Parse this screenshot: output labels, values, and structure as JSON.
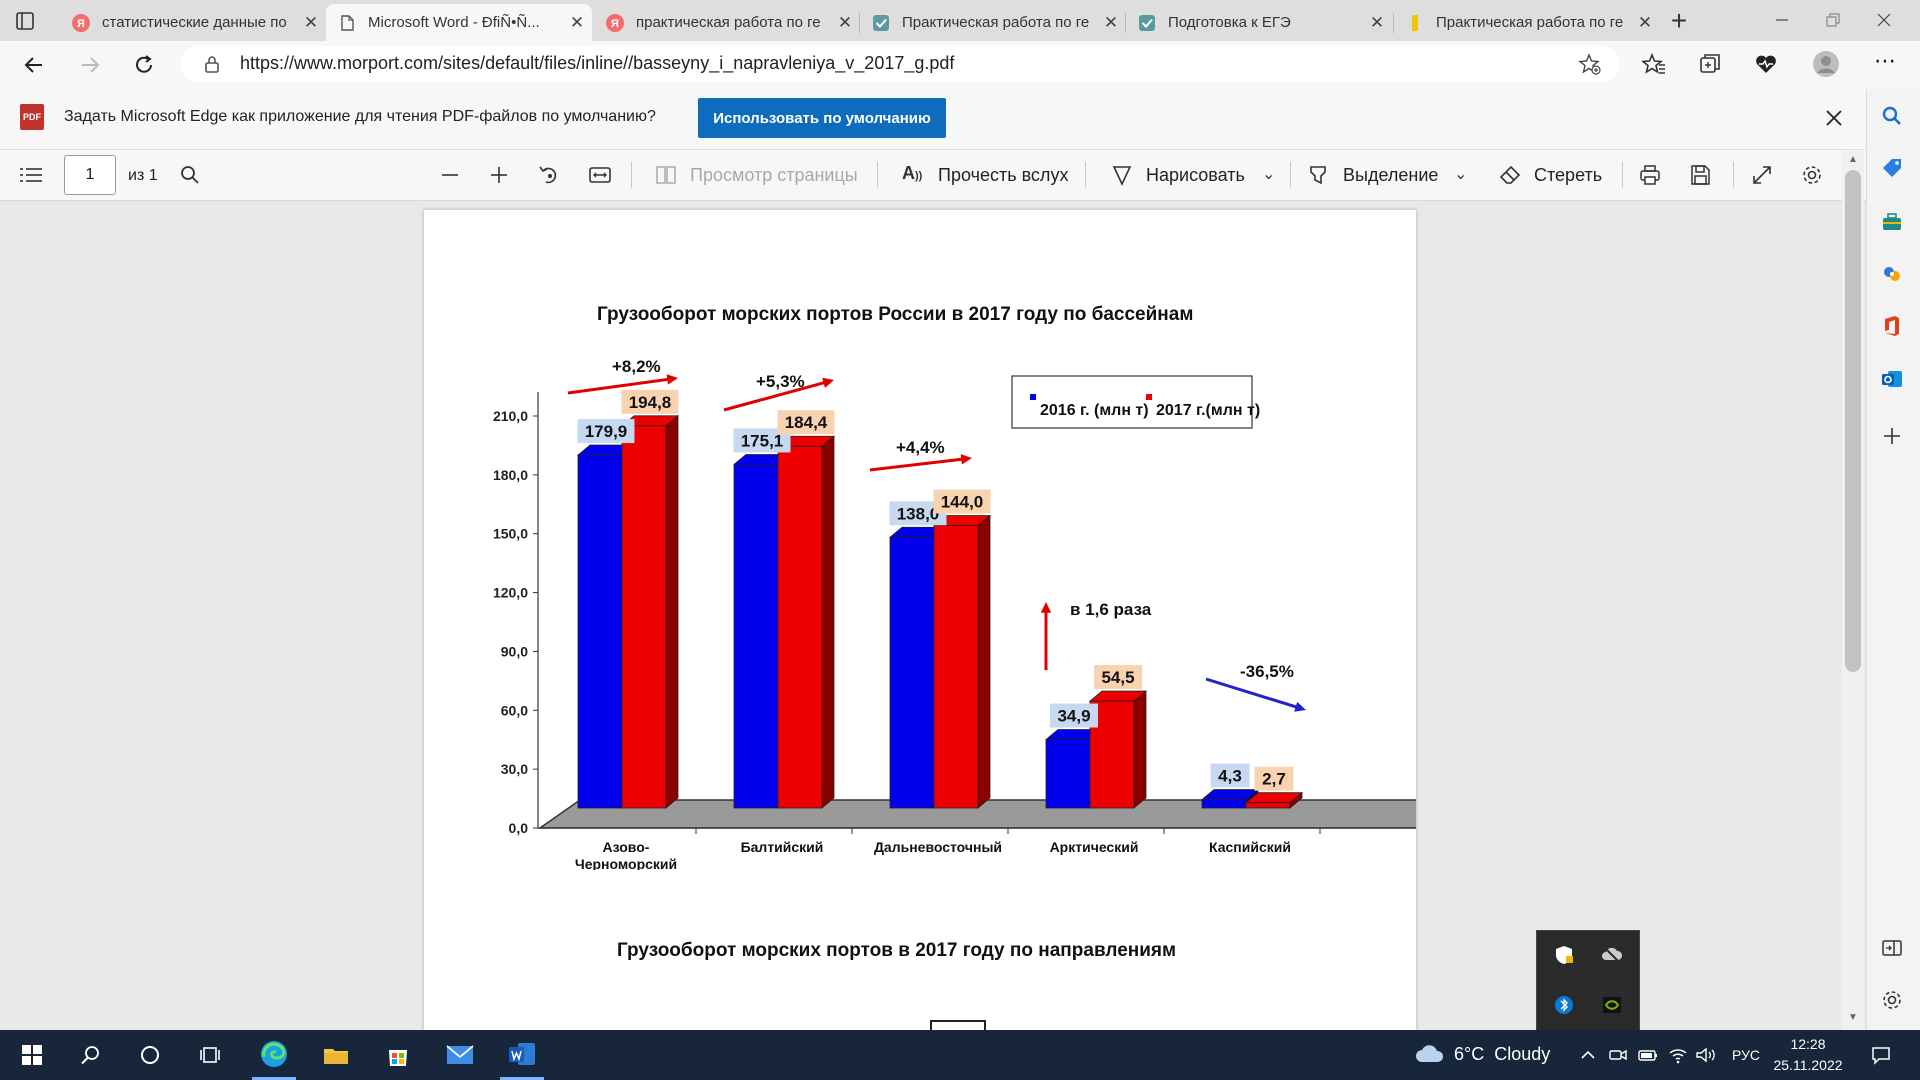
{
  "browser": {
    "tabs": [
      {
        "title": "статистические данные по",
        "icon": "yandex-icon",
        "color": "#f26d6d",
        "active": false
      },
      {
        "title": "Microsoft Word - ÐfiÑ•Ñ...",
        "icon": "document-icon",
        "color": "#555555",
        "active": true
      },
      {
        "title": "практическая работа по ге",
        "icon": "yandex-icon",
        "color": "#f26d6d",
        "active": false
      },
      {
        "title": "Практическая работа по ге",
        "icon": "check-icon",
        "color": "#5b9aa0",
        "active": false
      },
      {
        "title": "Подготовка к ЕГЭ",
        "icon": "check-icon",
        "color": "#5b9aa0",
        "active": false
      },
      {
        "title": "Практическая работа по ге",
        "icon": "bookmark-icon",
        "color": "#f2c500",
        "active": false
      }
    ],
    "new_tab": "+",
    "url": "https://www.morport.com/sites/default/files/inline//basseyny_i_napravleniya_v_2017_g.pdf"
  },
  "infobar": {
    "text": "Задать Microsoft Edge как приложение для чтения PDF-файлов по умолчанию?",
    "button": "Использовать по умолчанию",
    "pdf_badge": "PDF"
  },
  "pdf_toolbar": {
    "page_number": "1",
    "page_of": "из 1",
    "page_view": "Просмотр страницы",
    "read_aloud": "Прочесть вслух",
    "draw": "Нарисовать",
    "highlight": "Выделение",
    "erase": "Стереть"
  },
  "chart_data": {
    "type": "bar",
    "title": "Грузооборот морских портов России в 2017 году по бассейнам",
    "categories": [
      "Азово-Черноморский",
      "Балтийский",
      "Дальневосточный",
      "Арктический",
      "Каспийский"
    ],
    "category_lines": [
      [
        "Азово-",
        "Черноморский"
      ],
      [
        "Балтийский"
      ],
      [
        "Дальневосточный"
      ],
      [
        "Арктический"
      ],
      [
        "Каспийский"
      ]
    ],
    "series": [
      {
        "name": "2016 г. (млн т)",
        "values": [
          179.9,
          175.1,
          138.0,
          34.9,
          4.3
        ],
        "labels": [
          "179,9",
          "175,1",
          "138,0",
          "34,9",
          "4,3"
        ],
        "color": "#0000ee"
      },
      {
        "name": "2017 г.(млн т)",
        "values": [
          194.8,
          184.4,
          144.0,
          54.5,
          2.7
        ],
        "labels": [
          "194,8",
          "184,4",
          "144,0",
          "54,5",
          "2,7"
        ],
        "color": "#ee0000"
      }
    ],
    "ylim": [
      0,
      210
    ],
    "yticks": [
      "0,0",
      "30,0",
      "60,0",
      "90,0",
      "120,0",
      "150,0",
      "180,0",
      "210,0"
    ],
    "changes": [
      "+8,2%",
      "+5,3%",
      "+4,4%",
      "в 1,6 раза",
      "-36,5%"
    ],
    "legend_position": "top-right",
    "grid": false,
    "style": "3d-bars-on-grey-floor"
  },
  "second_chart": {
    "title": "Грузооборот морских портов в 2017 году по направлениям"
  },
  "taskbar": {
    "weather": "6°C  Cloudy",
    "lang": "РУС",
    "time": "12:28",
    "date": "25.11.2022"
  }
}
